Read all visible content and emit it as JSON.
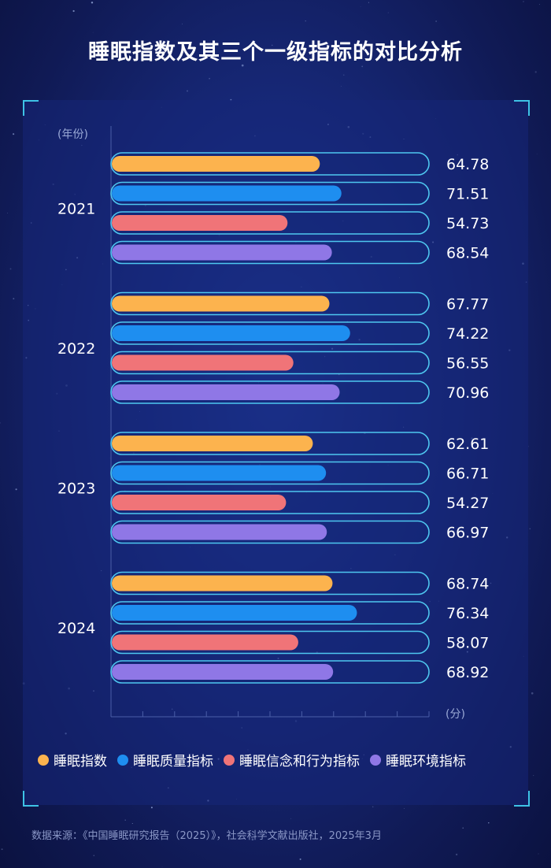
{
  "title": "睡眠指数及其三个一级指标的对比分析",
  "source": "数据来源：《中国睡眠研究报告（2025）》，社会科学文献出版社，2025年3月",
  "colors": {
    "background": "#17297a",
    "accent_frame": "#3ec3e6",
    "track_outline": "#4ec7f0"
  },
  "chart_data": {
    "type": "bar",
    "orientation": "horizontal",
    "title": "睡眠指数及其三个一级指标的对比分析",
    "ylabel": "(年份)",
    "xlabel": "(分)",
    "xlim": [
      0,
      100
    ],
    "categories": [
      "2021",
      "2022",
      "2023",
      "2024"
    ],
    "series": [
      {
        "name": "睡眠指数",
        "color": "#fcb34e",
        "values": [
          64.78,
          67.77,
          62.61,
          68.74
        ],
        "labels": [
          "64.78",
          "67.77",
          "62.61",
          "68.74"
        ]
      },
      {
        "name": "睡眠质量指标",
        "color": "#1e8ef0",
        "values": [
          71.51,
          74.22,
          66.71,
          76.34
        ],
        "labels": [
          "71.51",
          "74.22",
          "66.71",
          "76.34"
        ]
      },
      {
        "name": "睡眠信念和行为指标",
        "color": "#f07478",
        "values": [
          54.73,
          56.55,
          54.27,
          58.07
        ],
        "labels": [
          "54.73",
          "56.55",
          "54.27",
          "58.07"
        ]
      },
      {
        "name": "睡眠环境指标",
        "color": "#8f77e6",
        "values": [
          68.54,
          70.96,
          66.97,
          68.92
        ],
        "labels": [
          "68.54",
          "70.96",
          "66.97",
          "68.92"
        ]
      }
    ],
    "legend_position": "bottom"
  }
}
